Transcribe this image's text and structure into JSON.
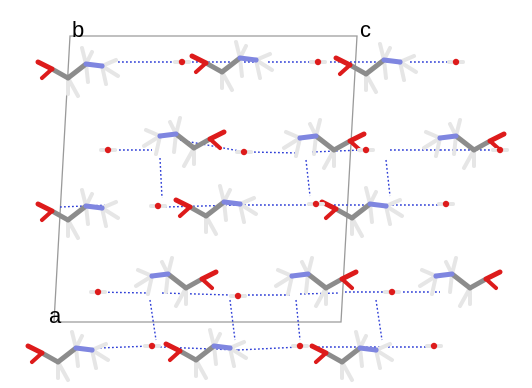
{
  "axis_labels": {
    "b": "b",
    "c": "c",
    "a": "a"
  },
  "colors": {
    "background": "#ffffff",
    "cell_edge": "#9a9a9a",
    "carbon": "#8c8c8c",
    "carbon_light": "#c8c8c8",
    "hydrogen": "#e6e6e6",
    "oxygen": "#dd1b1b",
    "nitrogen": "#7f86e0",
    "hydrogen_bond": "#2f3fd6"
  }
}
